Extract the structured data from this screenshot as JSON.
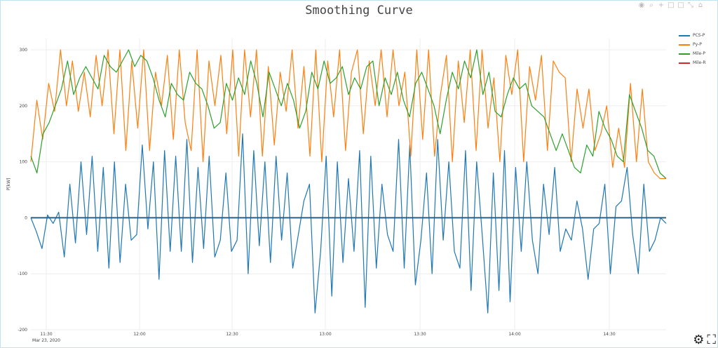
{
  "title": "Smoothing Curve",
  "modebar": {
    "icons": [
      "camera-icon",
      "zoom-icon",
      "plus-icon",
      "square-icon",
      "square-icon",
      "expand-icon",
      "home-icon"
    ]
  },
  "corner": {
    "icons": [
      "gear-icon",
      "fullscreen-icon"
    ]
  },
  "chart_data": {
    "type": "line",
    "title": "Smoothing Curve",
    "ylabel": "P[kW]",
    "xlabel": "",
    "ylim": [
      -200,
      320
    ],
    "yticks": [
      -200,
      -100,
      0,
      100,
      200,
      300
    ],
    "ytick_labels": [
      "-200",
      "-100",
      "0",
      "100",
      "200",
      "300"
    ],
    "xticks": [
      "11:30",
      "12:00",
      "12:30",
      "13:00",
      "13:30",
      "14:00",
      "14:30"
    ],
    "x_sub_label": "Mar 23, 2020",
    "grid": true,
    "legend": "top-right",
    "series": [
      {
        "name": "PCS-P",
        "color": "#1f77b4",
        "baseline": 0,
        "values": [
          0,
          -25,
          -55,
          5,
          -10,
          10,
          -70,
          60,
          -45,
          100,
          -30,
          110,
          -60,
          90,
          -90,
          100,
          -80,
          60,
          -40,
          -30,
          130,
          -20,
          100,
          -110,
          120,
          -60,
          110,
          -60,
          140,
          -80,
          90,
          -55,
          110,
          -70,
          -40,
          80,
          -60,
          -40,
          150,
          -100,
          120,
          -50,
          100,
          -80,
          110,
          -40,
          80,
          -90,
          -30,
          30,
          60,
          -170,
          -60,
          110,
          -140,
          100,
          -80,
          70,
          -60,
          120,
          -160,
          110,
          -90,
          60,
          -30,
          -60,
          140,
          -90,
          130,
          -120,
          -40,
          80,
          -100,
          140,
          -40,
          100,
          -60,
          -90,
          120,
          -130,
          100,
          -30,
          -170,
          80,
          -130,
          120,
          -150,
          90,
          -60,
          100,
          -40,
          -100,
          60,
          -30,
          90,
          -60,
          -20,
          -40,
          30,
          -20,
          -110,
          -20,
          -10,
          60,
          -100,
          20,
          30,
          90,
          -30,
          -100,
          60,
          -60,
          -40,
          0,
          -10
        ]
      },
      {
        "name": "Py-P",
        "color": "#ff7f0e",
        "values": [
          100,
          210,
          140,
          240,
          190,
          300,
          200,
          280,
          190,
          260,
          180,
          290,
          200,
          300,
          150,
          300,
          120,
          280,
          160,
          300,
          120,
          260,
          200,
          290,
          140,
          300,
          170,
          120,
          300,
          100,
          280,
          200,
          290,
          150,
          300,
          110,
          300,
          180,
          300,
          110,
          270,
          130,
          260,
          190,
          300,
          160,
          270,
          110,
          300,
          100,
          280,
          180,
          300,
          120,
          260,
          300,
          150,
          280,
          200,
          300,
          180,
          300,
          200,
          260,
          110,
          300,
          140,
          300,
          110,
          220,
          290,
          100,
          280,
          170,
          300,
          120,
          300,
          160,
          250,
          100,
          290,
          220,
          300,
          100,
          270,
          210,
          290,
          120,
          280,
          260,
          250,
          100,
          230,
          160,
          230,
          120,
          150,
          200,
          90,
          160,
          90,
          240,
          100,
          230,
          100,
          80,
          70,
          70
        ]
      },
      {
        "name": "Mile-P",
        "color": "#2ca02c",
        "values": [
          110,
          80,
          150,
          170,
          200,
          230,
          280,
          220,
          250,
          270,
          250,
          230,
          290,
          270,
          260,
          280,
          300,
          270,
          290,
          280,
          250,
          210,
          180,
          240,
          220,
          210,
          260,
          240,
          230,
          200,
          160,
          170,
          240,
          210,
          250,
          220,
          280,
          240,
          180,
          260,
          230,
          200,
          240,
          210,
          160,
          190,
          260,
          230,
          280,
          240,
          250,
          270,
          220,
          250,
          230,
          270,
          280,
          200,
          250,
          220,
          260,
          210,
          180,
          240,
          260,
          230,
          200,
          150,
          210,
          260,
          230,
          280,
          250,
          300,
          220,
          260,
          190,
          180,
          220,
          250,
          230,
          240,
          200,
          190,
          180,
          150,
          120,
          150,
          120,
          90,
          80,
          130,
          110,
          190,
          160,
          140,
          110,
          100,
          220,
          190,
          160,
          120,
          110,
          80,
          70
        ]
      },
      {
        "name": "Mile-R",
        "color": "#d62728",
        "values": []
      }
    ]
  }
}
